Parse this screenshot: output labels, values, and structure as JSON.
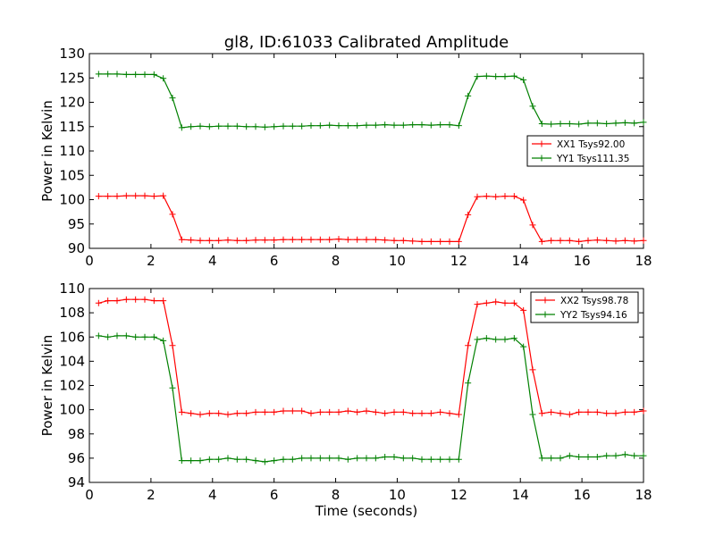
{
  "figure_title": "gl8, ID:61033 Calibrated Amplitude",
  "xlabel": "Time (seconds)",
  "chart_data": [
    {
      "type": "line",
      "title": "gl8, ID:61033 Calibrated Amplitude",
      "xlabel": "",
      "ylabel": "Power in Kelvin",
      "xlim": [
        0,
        18
      ],
      "ylim": [
        90,
        130
      ],
      "xticks": [
        0,
        2,
        4,
        6,
        8,
        10,
        12,
        14,
        16,
        18
      ],
      "yticks": [
        90,
        95,
        100,
        105,
        110,
        115,
        120,
        125,
        130
      ],
      "grid": false,
      "legend_placement": "center-right",
      "x": [
        0.3,
        0.6,
        0.9,
        1.2,
        1.5,
        1.8,
        2.1,
        2.4,
        2.7,
        3.0,
        3.3,
        3.6,
        3.9,
        4.2,
        4.5,
        4.8,
        5.1,
        5.4,
        5.7,
        6.0,
        6.3,
        6.6,
        6.9,
        7.2,
        7.5,
        7.8,
        8.1,
        8.4,
        8.7,
        9.0,
        9.3,
        9.6,
        9.9,
        10.2,
        10.5,
        10.8,
        11.1,
        11.4,
        11.7,
        12.0,
        12.3,
        12.6,
        12.9,
        13.2,
        13.5,
        13.8,
        14.1,
        14.4,
        14.7,
        15.0,
        15.3,
        15.6,
        15.9,
        16.2,
        16.5,
        16.8,
        17.1,
        17.4,
        17.7,
        18.0
      ],
      "series": [
        {
          "name": "XX1 Tsys92.00",
          "color": "#ff0000",
          "values": [
            100.7,
            100.7,
            100.7,
            100.8,
            100.8,
            100.8,
            100.7,
            100.8,
            97.0,
            91.8,
            91.7,
            91.6,
            91.6,
            91.6,
            91.7,
            91.6,
            91.6,
            91.7,
            91.7,
            91.7,
            91.8,
            91.8,
            91.8,
            91.8,
            91.8,
            91.8,
            91.9,
            91.8,
            91.8,
            91.8,
            91.8,
            91.7,
            91.6,
            91.6,
            91.5,
            91.4,
            91.4,
            91.4,
            91.4,
            91.4,
            96.9,
            100.6,
            100.7,
            100.6,
            100.7,
            100.7,
            99.9,
            94.8,
            91.4,
            91.6,
            91.6,
            91.6,
            91.4,
            91.6,
            91.7,
            91.6,
            91.5,
            91.6,
            91.5,
            91.6
          ]
        },
        {
          "name": "YY1 Tsys111.35",
          "color": "#008000",
          "values": [
            125.8,
            125.8,
            125.8,
            125.7,
            125.7,
            125.7,
            125.7,
            124.9,
            120.9,
            114.8,
            115.0,
            115.1,
            115.0,
            115.1,
            115.1,
            115.1,
            115.0,
            115.0,
            114.9,
            115.0,
            115.1,
            115.1,
            115.1,
            115.2,
            115.2,
            115.3,
            115.2,
            115.2,
            115.2,
            115.3,
            115.3,
            115.4,
            115.3,
            115.3,
            115.4,
            115.4,
            115.3,
            115.4,
            115.4,
            115.2,
            121.3,
            125.3,
            125.4,
            125.3,
            125.3,
            125.4,
            124.6,
            119.2,
            115.6,
            115.5,
            115.6,
            115.6,
            115.5,
            115.7,
            115.7,
            115.6,
            115.7,
            115.8,
            115.7,
            115.9
          ]
        }
      ]
    },
    {
      "type": "line",
      "title": "",
      "xlabel": "Time (seconds)",
      "ylabel": "Power in Kelvin",
      "xlim": [
        0,
        18
      ],
      "ylim": [
        94,
        110
      ],
      "xticks": [
        0,
        2,
        4,
        6,
        8,
        10,
        12,
        14,
        16,
        18
      ],
      "yticks": [
        94,
        96,
        98,
        100,
        102,
        104,
        106,
        108,
        110
      ],
      "grid": false,
      "legend_placement": "top-right",
      "x": [
        0.3,
        0.6,
        0.9,
        1.2,
        1.5,
        1.8,
        2.1,
        2.4,
        2.7,
        3.0,
        3.3,
        3.6,
        3.9,
        4.2,
        4.5,
        4.8,
        5.1,
        5.4,
        5.7,
        6.0,
        6.3,
        6.6,
        6.9,
        7.2,
        7.5,
        7.8,
        8.1,
        8.4,
        8.7,
        9.0,
        9.3,
        9.6,
        9.9,
        10.2,
        10.5,
        10.8,
        11.1,
        11.4,
        11.7,
        12.0,
        12.3,
        12.6,
        12.9,
        13.2,
        13.5,
        13.8,
        14.1,
        14.4,
        14.7,
        15.0,
        15.3,
        15.6,
        15.9,
        16.2,
        16.5,
        16.8,
        17.1,
        17.4,
        17.7,
        18.0
      ],
      "series": [
        {
          "name": "XX2 Tsys98.78",
          "color": "#ff0000",
          "values": [
            108.8,
            109.0,
            109.0,
            109.1,
            109.1,
            109.1,
            109.0,
            109.0,
            105.3,
            99.8,
            99.7,
            99.6,
            99.7,
            99.7,
            99.6,
            99.7,
            99.7,
            99.8,
            99.8,
            99.8,
            99.9,
            99.9,
            99.9,
            99.7,
            99.8,
            99.8,
            99.8,
            99.9,
            99.8,
            99.9,
            99.8,
            99.7,
            99.8,
            99.8,
            99.7,
            99.7,
            99.7,
            99.8,
            99.7,
            99.6,
            105.3,
            108.7,
            108.8,
            108.9,
            108.8,
            108.8,
            108.2,
            103.3,
            99.7,
            99.8,
            99.7,
            99.6,
            99.8,
            99.8,
            99.8,
            99.7,
            99.7,
            99.8,
            99.8,
            99.9
          ]
        },
        {
          "name": "YY2 Tsys94.16",
          "color": "#008000",
          "values": [
            106.1,
            106.0,
            106.1,
            106.1,
            106.0,
            106.0,
            106.0,
            105.7,
            101.8,
            95.8,
            95.8,
            95.8,
            95.9,
            95.9,
            96.0,
            95.9,
            95.9,
            95.8,
            95.7,
            95.8,
            95.9,
            95.9,
            96.0,
            96.0,
            96.0,
            96.0,
            96.0,
            95.9,
            96.0,
            96.0,
            96.0,
            96.1,
            96.1,
            96.0,
            96.0,
            95.9,
            95.9,
            95.9,
            95.9,
            95.9,
            102.2,
            105.8,
            105.9,
            105.8,
            105.8,
            105.9,
            105.2,
            99.6,
            96.0,
            96.0,
            96.0,
            96.2,
            96.1,
            96.1,
            96.1,
            96.2,
            96.2,
            96.3,
            96.2,
            96.2
          ]
        }
      ]
    }
  ]
}
